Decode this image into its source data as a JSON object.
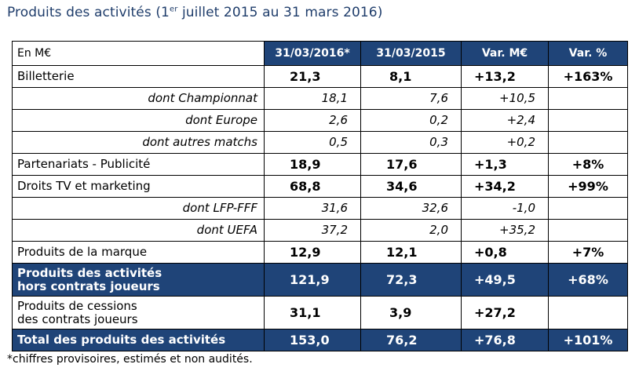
{
  "title_pre": "Produits des activités (1",
  "title_sup": "er",
  "title_post": " juillet 2015 au 31 mars 2016)",
  "header": {
    "label": "En M€",
    "col1": "31/03/2016*",
    "col2": "31/03/2015",
    "col3": "Var. M€",
    "col4": "Var. %"
  },
  "rows": {
    "billetterie": {
      "label": "Billetterie",
      "v1": "21,3",
      "v2": "8,1",
      "v3": "+13,2",
      "v4": "+163%"
    },
    "championnat": {
      "label": "dont Championnat",
      "v1": "18,1",
      "v2": "7,6",
      "v3": "+10,5"
    },
    "europe": {
      "label": "dont Europe",
      "v1": "2,6",
      "v2": "0,2",
      "v3": "+2,4"
    },
    "autres": {
      "label": "dont autres matchs",
      "v1": "0,5",
      "v2": "0,3",
      "v3": "+0,2"
    },
    "partenariats": {
      "label": "Partenariats - Publicité",
      "v1": "18,9",
      "v2": "17,6",
      "v3": "+1,3",
      "v4": "+8%"
    },
    "droits": {
      "label": "Droits TV et marketing",
      "v1": "68,8",
      "v2": "34,6",
      "v3": "+34,2",
      "v4": "+99%"
    },
    "lfp": {
      "label": "dont LFP-FFF",
      "v1": "31,6",
      "v2": "32,6",
      "v3": "-1,0"
    },
    "uefa": {
      "label": "dont UEFA",
      "v1": "37,2",
      "v2": "2,0",
      "v3": "+35,2"
    },
    "marque": {
      "label": "Produits de la marque",
      "v1": "12,9",
      "v2": "12,1",
      "v3": "+0,8",
      "v4": "+7%"
    },
    "hors": {
      "label1": "Produits des activités",
      "label2": "hors contrats joueurs",
      "v1": "121,9",
      "v2": "72,3",
      "v3": "+49,5",
      "v4": "+68%"
    },
    "cessions": {
      "label1": "Produits de cessions",
      "label2": "des contrats joueurs",
      "v1": "31,1",
      "v2": "3,9",
      "v3": "+27,2"
    },
    "total": {
      "label": "Total des produits des activités",
      "v1": "153,0",
      "v2": "76,2",
      "v3": "+76,8",
      "v4": "+101%"
    }
  },
  "footnote": "*chiffres provisoires, estimés et non audités."
}
